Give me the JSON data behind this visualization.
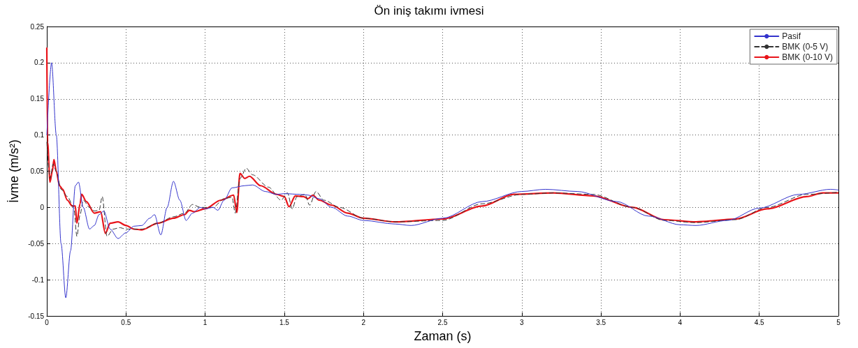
{
  "chart_data": {
    "type": "line",
    "title": "Ön iniş takımı ivmesi",
    "xlabel": "Zaman (s)",
    "ylabel": "İvme (m/s²)",
    "xlim": [
      0,
      5
    ],
    "xticks": [
      0,
      0.5,
      1,
      1.5,
      2,
      2.5,
      3,
      3.5,
      4,
      4.5,
      5
    ],
    "ylim": [
      -0.15,
      0.25
    ],
    "yticks": [
      -0.15,
      -0.1,
      -0.05,
      0,
      0.05,
      0.1,
      0.15,
      0.2,
      0.25
    ],
    "grid": true,
    "legend": "top right",
    "marker": "none",
    "series": [
      {
        "name": "Pasif",
        "color": "#3333cc",
        "line_style": "solid",
        "x": [
          0,
          0.03,
          0.06,
          0.09,
          0.12,
          0.15,
          0.18,
          0.2,
          0.23,
          0.27,
          0.3,
          0.33,
          0.36,
          0.4,
          0.45,
          0.5,
          0.55,
          0.6,
          0.65,
          0.68,
          0.72,
          0.76,
          0.8,
          0.84,
          0.88,
          0.92,
          0.97,
          1.0,
          1.05,
          1.08,
          1.12,
          1.17,
          1.25,
          1.3,
          1.38,
          1.45,
          1.5,
          1.6,
          1.65,
          1.72,
          1.8,
          1.9,
          2.0,
          2.2,
          2.3,
          2.5,
          2.75,
          3.0,
          3.15,
          3.35,
          3.6,
          3.8,
          4.0,
          4.1,
          4.3,
          4.5,
          4.75,
          4.95,
          5.0
        ],
        "values": [
          0.1,
          0.2,
          0.1,
          -0.05,
          -0.125,
          -0.06,
          0.03,
          0.035,
          0.0,
          -0.03,
          -0.025,
          -0.01,
          -0.005,
          -0.03,
          -0.043,
          -0.035,
          -0.026,
          -0.025,
          -0.015,
          -0.01,
          -0.038,
          0.0,
          0.036,
          0.01,
          -0.018,
          -0.008,
          0.0,
          -0.002,
          0.0,
          -0.004,
          0.01,
          0.027,
          0.03,
          0.031,
          0.022,
          0.018,
          0.019,
          0.018,
          0.017,
          0.012,
          0.0,
          -0.012,
          -0.018,
          -0.023,
          -0.025,
          -0.015,
          0.008,
          0.022,
          0.025,
          0.022,
          0.008,
          -0.012,
          -0.024,
          -0.025,
          -0.018,
          -0.001,
          0.018,
          0.025,
          0.024
        ]
      },
      {
        "name": "BMK (0-5 V)",
        "color": "#333333",
        "line_style": "dashed",
        "x": [
          0,
          0.02,
          0.04,
          0.06,
          0.09,
          0.13,
          0.17,
          0.19,
          0.21,
          0.23,
          0.27,
          0.3,
          0.33,
          0.35,
          0.38,
          0.42,
          0.46,
          0.5,
          0.55,
          0.6,
          0.7,
          0.8,
          0.87,
          0.92,
          0.97,
          1.05,
          1.12,
          1.17,
          1.19,
          1.22,
          1.26,
          1.3,
          1.4,
          1.48,
          1.52,
          1.55,
          1.58,
          1.63,
          1.66,
          1.7,
          1.75,
          1.85,
          2.0,
          2.2,
          2.5,
          2.75,
          3.0,
          3.2,
          3.45,
          3.7,
          3.9,
          4.1,
          4.35,
          4.55,
          4.8,
          5.0
        ],
        "values": [
          0.09,
          0.04,
          0.06,
          0.05,
          0.025,
          0.015,
          0.0,
          -0.04,
          -0.01,
          0.01,
          0.0,
          -0.005,
          -0.004,
          0.015,
          -0.04,
          -0.03,
          -0.028,
          -0.03,
          -0.03,
          -0.03,
          -0.022,
          -0.013,
          -0.008,
          0.004,
          0.0,
          0.0,
          0.012,
          0.014,
          -0.008,
          0.04,
          0.054,
          0.045,
          0.028,
          0.01,
          0.02,
          -0.002,
          0.015,
          0.018,
          0.003,
          0.022,
          0.01,
          0.0,
          -0.015,
          -0.02,
          -0.018,
          0.005,
          0.018,
          0.02,
          0.018,
          0.0,
          -0.018,
          -0.021,
          -0.017,
          0.0,
          0.018,
          0.021
        ]
      },
      {
        "name": "BMK (0-10 V)",
        "color": "#e8141a",
        "line_style": "solid",
        "x": [
          0,
          0.005,
          0.02,
          0.035,
          0.045,
          0.06,
          0.08,
          0.1,
          0.13,
          0.16,
          0.18,
          0.19,
          0.21,
          0.22,
          0.25,
          0.3,
          0.34,
          0.37,
          0.4,
          0.45,
          0.5,
          0.55,
          0.6,
          0.7,
          0.8,
          0.87,
          0.9,
          0.93,
          1.0,
          1.1,
          1.18,
          1.2,
          1.22,
          1.25,
          1.28,
          1.35,
          1.45,
          1.5,
          1.53,
          1.57,
          1.62,
          1.65,
          1.68,
          1.72,
          1.8,
          1.9,
          2.0,
          2.2,
          2.5,
          2.75,
          2.95,
          3.2,
          3.45,
          3.7,
          3.9,
          4.1,
          4.35,
          4.55,
          4.8,
          4.9,
          5.0
        ],
        "values": [
          0.22,
          0.09,
          0.035,
          0.05,
          0.066,
          0.05,
          0.03,
          0.025,
          0.01,
          0.002,
          0.002,
          -0.022,
          0.005,
          0.018,
          0.008,
          -0.008,
          -0.006,
          -0.036,
          -0.022,
          -0.02,
          -0.025,
          -0.03,
          -0.031,
          -0.022,
          -0.015,
          -0.01,
          -0.004,
          -0.006,
          -0.002,
          0.01,
          0.017,
          -0.007,
          0.047,
          0.04,
          0.043,
          0.03,
          0.018,
          0.015,
          0.001,
          0.016,
          0.015,
          0.012,
          0.017,
          0.01,
          0.003,
          -0.008,
          -0.015,
          -0.02,
          -0.016,
          0.002,
          0.018,
          0.02,
          0.016,
          0.0,
          -0.017,
          -0.02,
          -0.016,
          -0.002,
          0.015,
          0.02,
          0.02
        ]
      }
    ]
  }
}
